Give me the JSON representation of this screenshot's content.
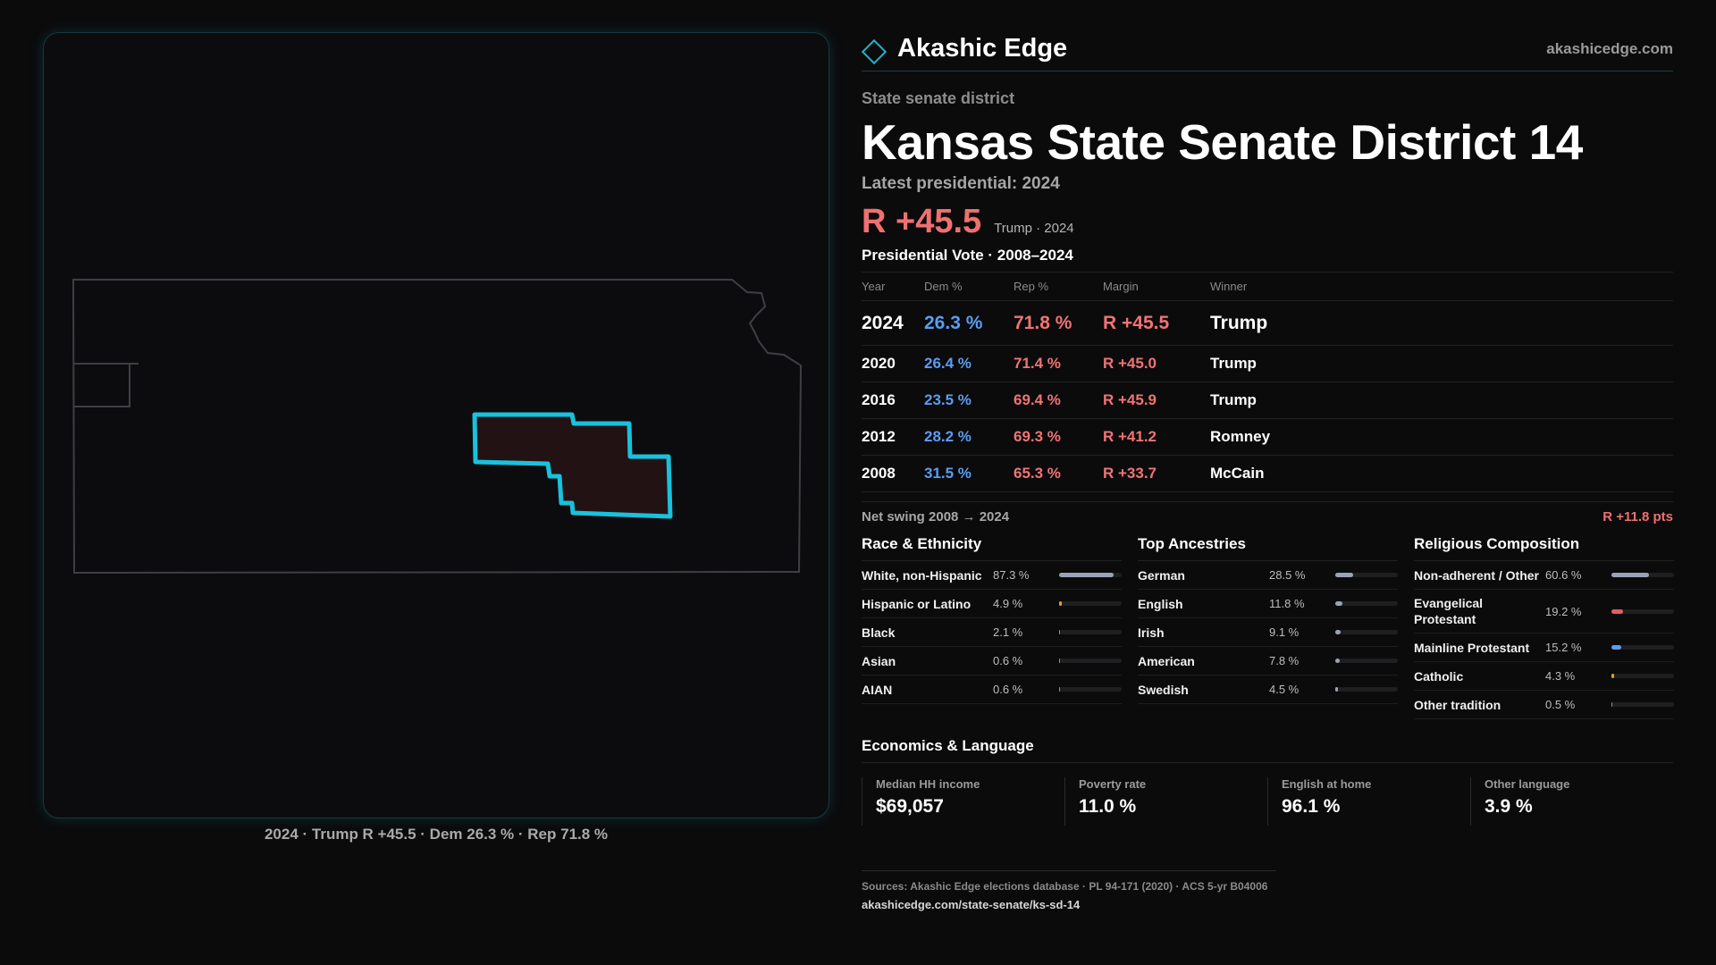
{
  "brand": {
    "name": "Akashic Edge",
    "url": "akashicedge.com",
    "accent": "#23b3c7"
  },
  "eyebrow": "State senate district",
  "title": "Kansas State Senate District 14",
  "latest_label": "Latest presidential: 2024",
  "headline": {
    "margin": "R +45.5",
    "sub": "Trump · 2024"
  },
  "presidential": {
    "title": "Presidential Vote · 2008–2024",
    "headers": {
      "year": "Year",
      "dem": "Dem %",
      "rep": "Rep %",
      "margin": "Margin",
      "winner": "Winner"
    },
    "rows": [
      {
        "year": "2024",
        "dem": "26.3 %",
        "rep": "71.8 %",
        "margin": "R +45.5",
        "winner": "Trump"
      },
      {
        "year": "2020",
        "dem": "26.4 %",
        "rep": "71.4 %",
        "margin": "R +45.0",
        "winner": "Trump"
      },
      {
        "year": "2016",
        "dem": "23.5 %",
        "rep": "69.4 %",
        "margin": "R +45.9",
        "winner": "Trump"
      },
      {
        "year": "2012",
        "dem": "28.2 %",
        "rep": "69.3 %",
        "margin": "R +41.2",
        "winner": "Romney"
      },
      {
        "year": "2008",
        "dem": "31.5 %",
        "rep": "65.3 %",
        "margin": "R +33.7",
        "winner": "McCain"
      }
    ]
  },
  "swing": {
    "label": "Net swing 2008 → 2024",
    "value": "R +11.8 pts"
  },
  "race": {
    "title": "Race & Ethnicity",
    "items": [
      {
        "label": "White, non-Hispanic",
        "pct": "87.3 %",
        "value": 87.3,
        "color": "#9aa3b5"
      },
      {
        "label": "Hispanic or Latino",
        "pct": "4.9 %",
        "value": 4.9,
        "color": "#e0a030"
      },
      {
        "label": "Black",
        "pct": "2.1 %",
        "value": 2.1,
        "color": "#8a8aa8"
      },
      {
        "label": "Asian",
        "pct": "0.6 %",
        "value": 0.6,
        "color": "#8a8aa8"
      },
      {
        "label": "AIAN",
        "pct": "0.6 %",
        "value": 0.6,
        "color": "#8a8aa8"
      }
    ]
  },
  "ancestry": {
    "title": "Top Ancestries",
    "items": [
      {
        "label": "German",
        "pct": "28.5 %",
        "value": 28.5,
        "color": "#9aa3b5"
      },
      {
        "label": "English",
        "pct": "11.8 %",
        "value": 11.8,
        "color": "#9aa3b5"
      },
      {
        "label": "Irish",
        "pct": "9.1 %",
        "value": 9.1,
        "color": "#9aa3b5"
      },
      {
        "label": "American",
        "pct": "7.8 %",
        "value": 7.8,
        "color": "#9aa3b5"
      },
      {
        "label": "Swedish",
        "pct": "4.5 %",
        "value": 4.5,
        "color": "#9aa3b5"
      }
    ]
  },
  "religion": {
    "title": "Religious Composition",
    "items": [
      {
        "label": "Non-adherent / Other",
        "pct": "60.6 %",
        "value": 60.6,
        "color": "#9aa3b5"
      },
      {
        "label": "Evangelical Protestant",
        "pct": "19.2 %",
        "value": 19.2,
        "color": "#e06060"
      },
      {
        "label": "Mainline Protestant",
        "pct": "15.2 %",
        "value": 15.2,
        "color": "#5b9cf0"
      },
      {
        "label": "Catholic",
        "pct": "4.3 %",
        "value": 4.3,
        "color": "#e0a030"
      },
      {
        "label": "Other tradition",
        "pct": "0.5 %",
        "value": 0.5,
        "color": "#8a8aa8"
      }
    ]
  },
  "economics": {
    "title": "Economics & Language",
    "items": [
      {
        "label": "Median HH income",
        "value": "$69,057"
      },
      {
        "label": "Poverty rate",
        "value": "11.0 %"
      },
      {
        "label": "English at home",
        "value": "96.1 %"
      },
      {
        "label": "Other language",
        "value": "3.9 %"
      }
    ]
  },
  "sources": {
    "line": "Sources: Akashic Edge elections database · PL 94-171 (2020) · ACS 5-yr B04006",
    "link": "akashicedge.com/state-senate/ks-sd-14"
  },
  "map_caption": "2024 · Trump R +45.5 · Dem 26.3 % · Rep 71.8 %",
  "colors": {
    "dem": "#5b9cf0",
    "rep": "#f07474",
    "district_outline": "#18c2dc",
    "district_fill": "#221214"
  }
}
